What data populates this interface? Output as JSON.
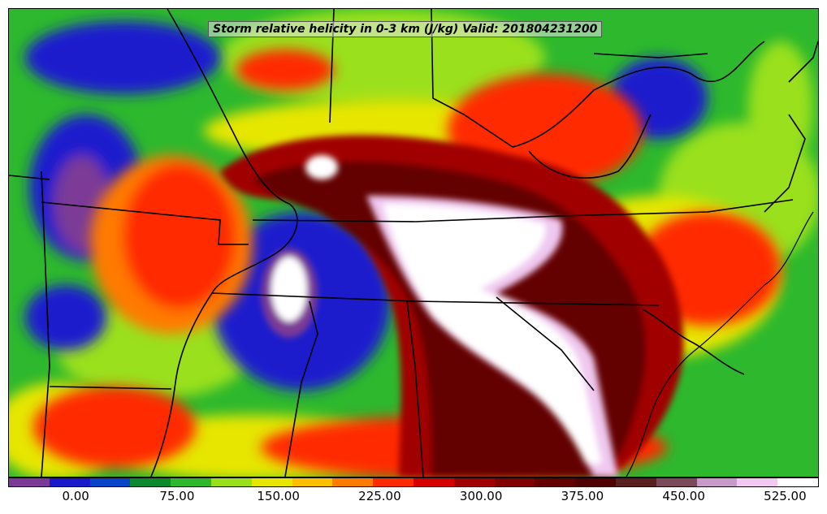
{
  "title": "Storm relative helicity in 0-3 km (J/kg) Valid: 201804231200",
  "colorbar": {
    "colors": [
      "#7b3a96",
      "#1a1acd",
      "#0a44c8",
      "#0a8a2a",
      "#2db82d",
      "#9ae01a",
      "#e6e600",
      "#ffbf00",
      "#ff7a00",
      "#ff2a00",
      "#d40000",
      "#a00000",
      "#800000",
      "#640000",
      "#500000",
      "#5a2020",
      "#7a4a5a",
      "#c89ac8",
      "#f0c8f0",
      "#ffffff"
    ],
    "ticks": [
      {
        "label": "0.00",
        "value": 0
      },
      {
        "label": "75.00",
        "value": 75
      },
      {
        "label": "150.00",
        "value": 150
      },
      {
        "label": "225.00",
        "value": 225
      },
      {
        "label": "300.00",
        "value": 300
      },
      {
        "label": "375.00",
        "value": 375
      },
      {
        "label": "450.00",
        "value": 450
      },
      {
        "label": "525.00",
        "value": 525
      }
    ],
    "min": -50,
    "max": 550
  }
}
